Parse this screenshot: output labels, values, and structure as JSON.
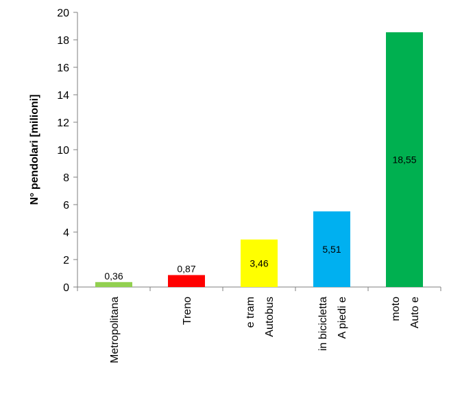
{
  "chart_data": {
    "type": "bar",
    "title": "",
    "xlabel": "",
    "ylabel": "N° pendolari [milioni]",
    "ylim": [
      0,
      20
    ],
    "yticks": [
      0,
      2,
      4,
      6,
      8,
      10,
      12,
      14,
      16,
      18,
      20
    ],
    "grid": false,
    "legend": "none",
    "categories": [
      [
        "Metropolitana"
      ],
      [
        "Treno"
      ],
      [
        "Autobus",
        "e tram"
      ],
      [
        "A piedi e",
        "in bicicletta"
      ],
      [
        "Auto e",
        "moto"
      ]
    ],
    "values": [
      0.36,
      0.87,
      3.46,
      5.51,
      18.55
    ],
    "data_labels": [
      "0,36",
      "0,87",
      "3,46",
      "5,51",
      "18,55"
    ],
    "colors": [
      "#92D050",
      "#FF0000",
      "#FFFF00",
      "#00B0F0",
      "#00B050"
    ]
  }
}
